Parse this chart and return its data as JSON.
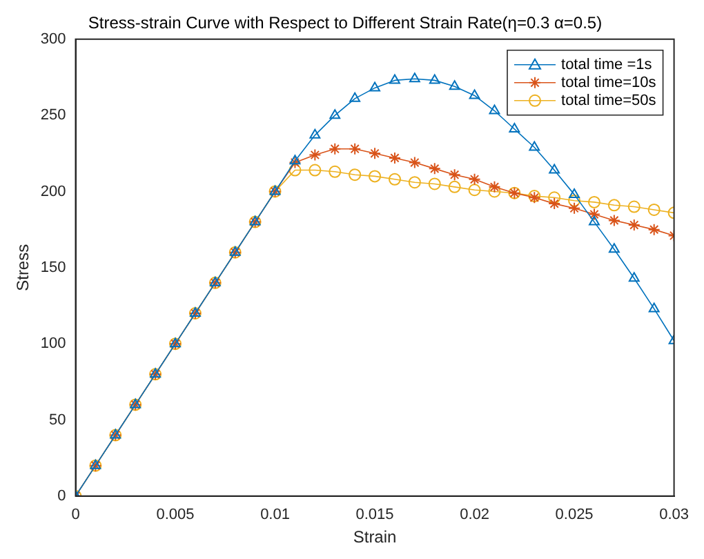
{
  "chart_data": {
    "type": "line",
    "title": "Stress-strain Curve with Respect to Different Strain Rate(η=0.3 α=0.5)",
    "xlabel": "Strain",
    "ylabel": "Stress",
    "x": [
      0,
      0.001,
      0.002,
      0.003,
      0.004,
      0.005,
      0.006,
      0.007,
      0.008,
      0.009,
      0.01,
      0.011,
      0.012,
      0.013,
      0.014,
      0.015,
      0.016,
      0.017,
      0.018,
      0.019,
      0.02,
      0.021,
      0.022,
      0.023,
      0.024,
      0.025,
      0.026,
      0.027,
      0.028,
      0.029,
      0.03
    ],
    "series": [
      {
        "name": "total time =1s",
        "color": "#0072bd",
        "marker": "triangle",
        "values": [
          0,
          20,
          40,
          60,
          80,
          100,
          120,
          140,
          160,
          180,
          200,
          220,
          237,
          250,
          261,
          268,
          273,
          274,
          273,
          269,
          263,
          253,
          241,
          229,
          214,
          198,
          180,
          162,
          143,
          123,
          102
        ]
      },
      {
        "name": "total time=10s",
        "color": "#d95319",
        "marker": "cross",
        "values": [
          0,
          20,
          40,
          60,
          80,
          100,
          120,
          140,
          160,
          180,
          200,
          219,
          224,
          228,
          228,
          225,
          222,
          219,
          215,
          211,
          208,
          203,
          199,
          196,
          192,
          189,
          185,
          181,
          178,
          175,
          171
        ]
      },
      {
        "name": "total time=50s",
        "color": "#edb120",
        "marker": "circle",
        "values": [
          0,
          20,
          40,
          60,
          80,
          100,
          120,
          140,
          160,
          180,
          200,
          214,
          214,
          213,
          211,
          210,
          208,
          206,
          205,
          203,
          201,
          200,
          199,
          197,
          196,
          194,
          193,
          191,
          190,
          188,
          186
        ]
      }
    ],
    "xlim": [
      0,
      0.03
    ],
    "xticks": [
      0,
      0.005,
      0.01,
      0.015,
      0.02,
      0.025,
      0.03
    ],
    "ylim": [
      0,
      300
    ],
    "yticks": [
      0,
      50,
      100,
      150,
      200,
      250,
      300
    ],
    "grid": false,
    "legend": "top right"
  }
}
